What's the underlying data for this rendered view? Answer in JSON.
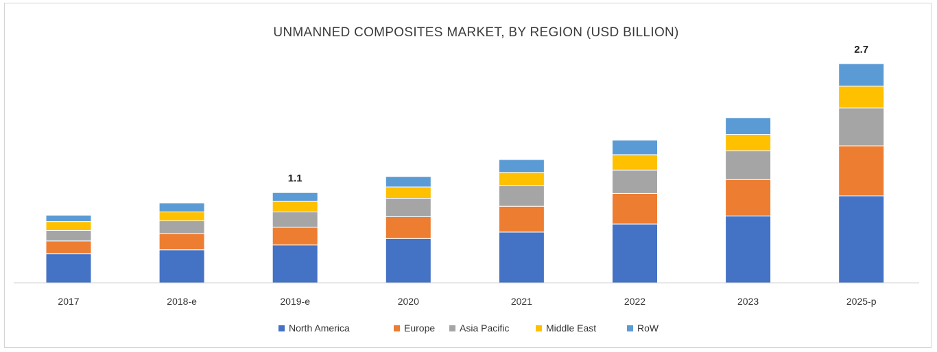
{
  "chart_data": {
    "type": "bar",
    "stacked": true,
    "title": "UNMANNED COMPOSITES MARKET, BY REGION (USD BILLION)",
    "xlabel": "",
    "ylabel": "",
    "ylim": [
      0,
      3.0
    ],
    "grid": false,
    "legend_position": "bottom",
    "categories": [
      "2017",
      "2018-e",
      "2019-e",
      "2020",
      "2021",
      "2022",
      "2023",
      "2025-p"
    ],
    "series": [
      {
        "name": "North America",
        "color": "#4472C4",
        "values": [
          0.36,
          0.41,
          0.47,
          0.55,
          0.63,
          0.73,
          0.83,
          1.08
        ]
      },
      {
        "name": "Europe",
        "color": "#ED7D31",
        "values": [
          0.16,
          0.2,
          0.22,
          0.27,
          0.32,
          0.38,
          0.45,
          0.62
        ]
      },
      {
        "name": "Asia Pacific",
        "color": "#A5A5A5",
        "values": [
          0.13,
          0.16,
          0.19,
          0.23,
          0.26,
          0.29,
          0.36,
          0.47
        ]
      },
      {
        "name": "Middle East",
        "color": "#FFC000",
        "values": [
          0.11,
          0.11,
          0.13,
          0.14,
          0.16,
          0.19,
          0.2,
          0.27
        ]
      },
      {
        "name": "RoW",
        "color": "#5B9BD5",
        "values": [
          0.08,
          0.11,
          0.11,
          0.13,
          0.16,
          0.18,
          0.21,
          0.28
        ]
      }
    ],
    "data_labels": [
      {
        "category": "2019-e",
        "text": "1.1"
      },
      {
        "category": "2025-p",
        "text": "2.7"
      }
    ]
  }
}
